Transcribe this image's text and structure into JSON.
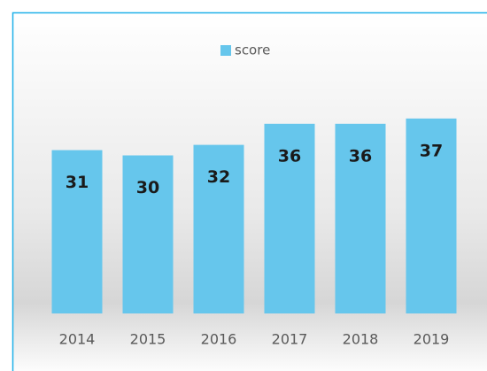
{
  "chart_data": {
    "type": "bar",
    "categories": [
      "2014",
      "2015",
      "2016",
      "2017",
      "2018",
      "2019"
    ],
    "series": [
      {
        "name": "score",
        "color": "#66c6ec",
        "values": [
          31,
          30,
          32,
          36,
          36,
          37
        ]
      }
    ],
    "ylim": [
      0,
      40
    ],
    "legend": "top"
  }
}
